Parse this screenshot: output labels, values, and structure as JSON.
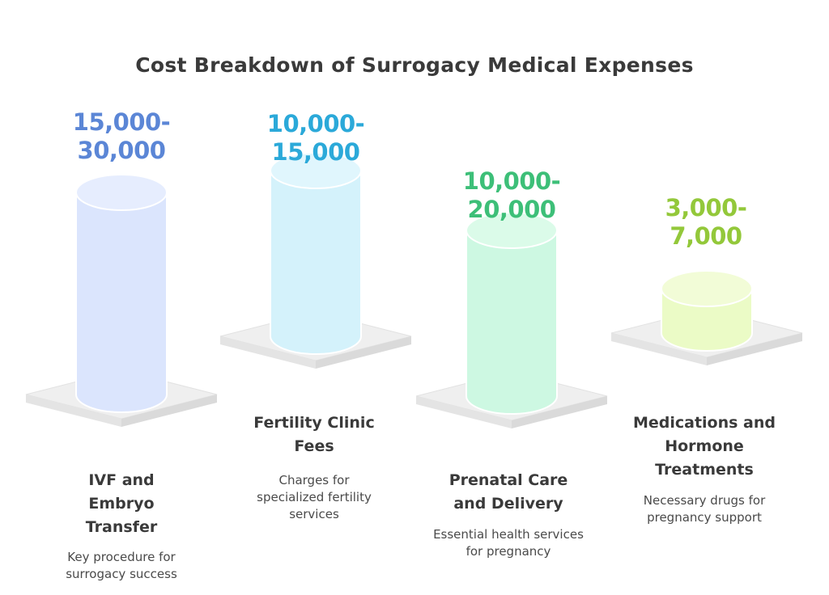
{
  "title": "Cost Breakdown of Surrogacy Medical Expenses",
  "items": [
    {
      "value_line1": "15,000-",
      "value_line2": "30,000",
      "label": "IVF and Embryo Transfer",
      "description": "Key procedure for surrogacy success",
      "value_color": "#5b86d6",
      "fill_color": "#dbe5fd",
      "top_color": "#e6edfe",
      "level": 1.0
    },
    {
      "value_line1": "10,000-",
      "value_line2": "15,000",
      "label": "Fertility Clinic Fees",
      "description": "Charges for specialized fertility services",
      "value_color": "#2ba9d9",
      "fill_color": "#d4f2fb",
      "top_color": "#e0f6fd",
      "level": 0.82
    },
    {
      "value_line1": "10,000-",
      "value_line2": "20,000",
      "label": "Prenatal Care and Delivery",
      "description": "Essential health services for pregnancy",
      "value_color": "#3dbf78",
      "fill_color": "#cdf8e2",
      "top_color": "#dbfbe9",
      "level": 0.82
    },
    {
      "value_line1": "3,000-",
      "value_line2": "7,000",
      "label": "Medications and Hormone Treatments",
      "description": "Necessary drugs for pregnancy support",
      "value_color": "#93c83a",
      "fill_color": "#ebfbc6",
      "top_color": "#f2fcd7",
      "level": 0.22
    }
  ]
}
